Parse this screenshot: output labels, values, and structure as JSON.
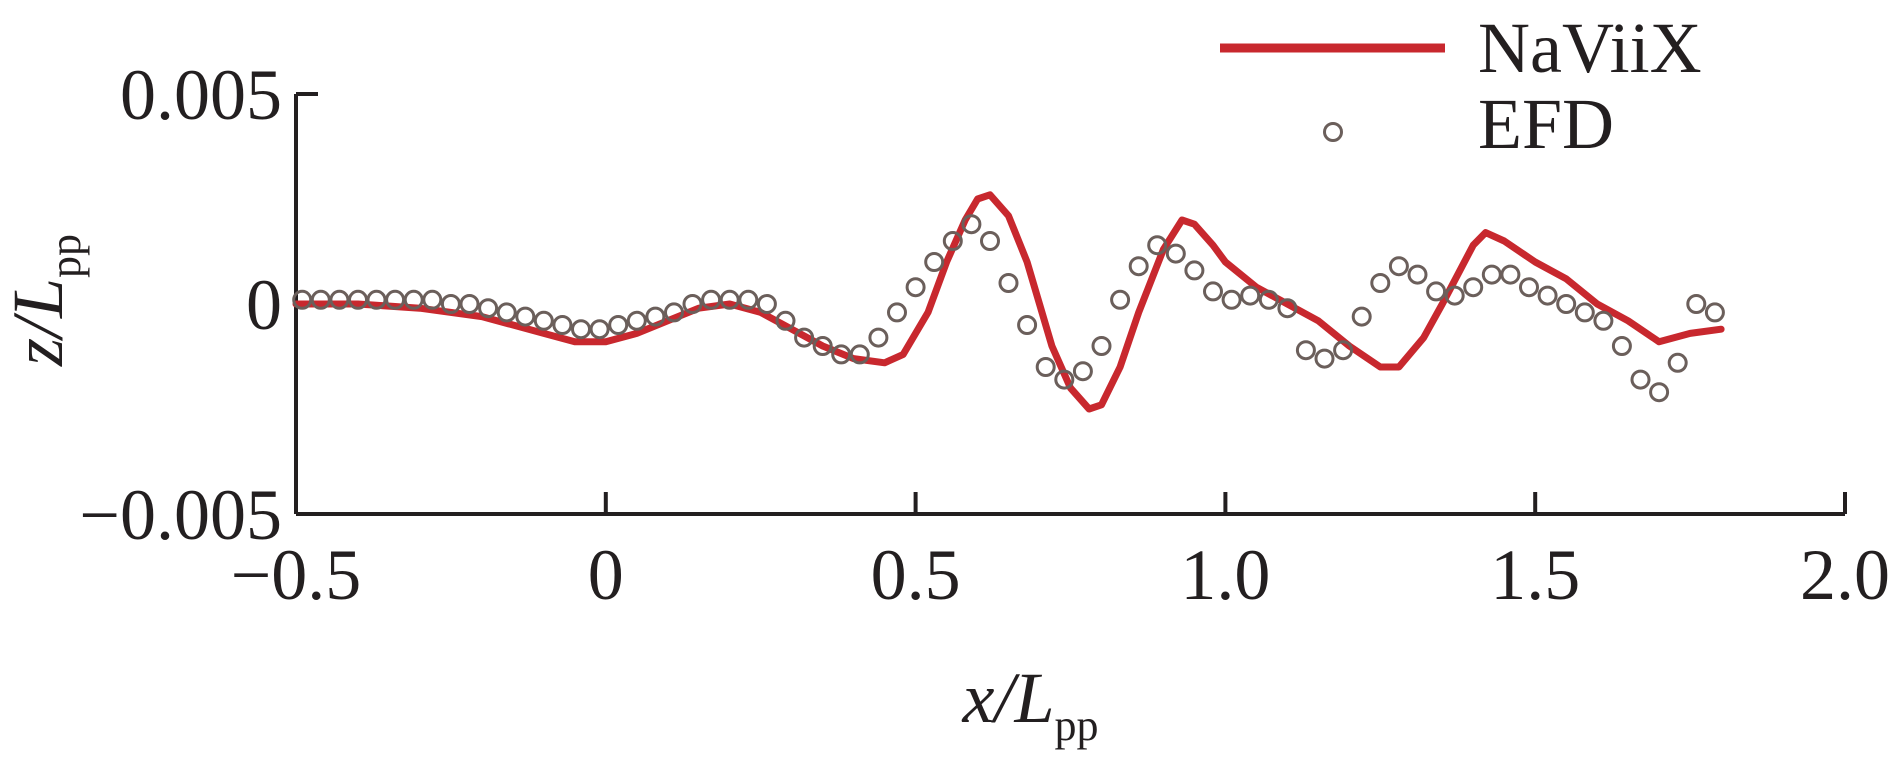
{
  "chart_data": {
    "type": "line",
    "title": "",
    "xlabel": {
      "main": "x/L",
      "sub": "pp"
    },
    "ylabel": {
      "main": "z/L",
      "sub": "pp"
    },
    "xlim": [
      -0.5,
      2.0
    ],
    "ylim": [
      -0.005,
      0.005
    ],
    "x_ticks": [
      -0.5,
      0,
      0.5,
      1.0,
      1.5,
      2.0
    ],
    "x_tick_labels": [
      "−0.5",
      "0",
      "0.5",
      "1.0",
      "1.5",
      "2.0"
    ],
    "y_ticks": [
      0.005,
      0,
      -0.005
    ],
    "y_tick_labels": [
      "0.005",
      "0",
      "−0.005"
    ],
    "grid": false,
    "legend_position": "top-right",
    "series": [
      {
        "name": "NaViiX",
        "style": "line",
        "color": "#c8282e",
        "x": [
          -0.5,
          -0.4,
          -0.3,
          -0.2,
          -0.1,
          -0.05,
          0.0,
          0.05,
          0.1,
          0.15,
          0.2,
          0.25,
          0.3,
          0.35,
          0.4,
          0.45,
          0.48,
          0.52,
          0.55,
          0.58,
          0.6,
          0.62,
          0.65,
          0.68,
          0.7,
          0.72,
          0.75,
          0.78,
          0.8,
          0.83,
          0.86,
          0.9,
          0.93,
          0.95,
          0.98,
          1.0,
          1.05,
          1.1,
          1.15,
          1.2,
          1.25,
          1.28,
          1.32,
          1.35,
          1.4,
          1.42,
          1.45,
          1.5,
          1.55,
          1.6,
          1.65,
          1.7,
          1.75,
          1.8
        ],
        "values": [
          0.0,
          0.0,
          -0.0001,
          -0.0003,
          -0.0007,
          -0.0009,
          -0.0009,
          -0.0007,
          -0.0004,
          -0.0001,
          0.0,
          -0.0002,
          -0.0006,
          -0.001,
          -0.0013,
          -0.0014,
          -0.0012,
          -0.0002,
          0.001,
          0.002,
          0.0025,
          0.0026,
          0.0021,
          0.001,
          0.0,
          -0.001,
          -0.002,
          -0.0025,
          -0.0024,
          -0.0015,
          -0.0002,
          0.0013,
          0.002,
          0.0019,
          0.0014,
          0.001,
          0.0004,
          0.0,
          -0.0004,
          -0.001,
          -0.0015,
          -0.0015,
          -0.0008,
          0.0,
          0.0014,
          0.0017,
          0.0015,
          0.001,
          0.0006,
          0.0,
          -0.0004,
          -0.0009,
          -0.0007,
          -0.0006
        ]
      },
      {
        "name": "EFD",
        "style": "markers",
        "marker": "open-circle",
        "color": "#6b5f5b",
        "x": [
          -0.49,
          -0.46,
          -0.43,
          -0.4,
          -0.37,
          -0.34,
          -0.31,
          -0.28,
          -0.25,
          -0.22,
          -0.19,
          -0.16,
          -0.13,
          -0.1,
          -0.07,
          -0.04,
          -0.01,
          0.02,
          0.05,
          0.08,
          0.11,
          0.14,
          0.17,
          0.2,
          0.23,
          0.26,
          0.29,
          0.32,
          0.35,
          0.38,
          0.41,
          0.44,
          0.47,
          0.5,
          0.53,
          0.56,
          0.59,
          0.62,
          0.65,
          0.68,
          0.71,
          0.74,
          0.77,
          0.8,
          0.83,
          0.86,
          0.89,
          0.92,
          0.95,
          0.98,
          1.01,
          1.04,
          1.07,
          1.1,
          1.13,
          1.16,
          1.19,
          1.22,
          1.25,
          1.28,
          1.31,
          1.34,
          1.37,
          1.4,
          1.43,
          1.46,
          1.49,
          1.52,
          1.55,
          1.58,
          1.61,
          1.64,
          1.67,
          1.7,
          1.73,
          1.76,
          1.79
        ],
        "values": [
          0.0001,
          0.0001,
          0.0001,
          0.0001,
          0.0001,
          0.0001,
          0.0001,
          0.0001,
          0.0,
          0.0,
          -0.0001,
          -0.0002,
          -0.0003,
          -0.0004,
          -0.0005,
          -0.0006,
          -0.0006,
          -0.0005,
          -0.0004,
          -0.0003,
          -0.0002,
          0.0,
          0.0001,
          0.0001,
          0.0001,
          0.0,
          -0.0004,
          -0.0008,
          -0.001,
          -0.0012,
          -0.0012,
          -0.0008,
          -0.0002,
          0.0004,
          0.001,
          0.0015,
          0.0019,
          0.0015,
          0.0005,
          -0.0005,
          -0.0015,
          -0.0018,
          -0.0016,
          -0.001,
          0.0001,
          0.0009,
          0.0014,
          0.0012,
          0.0008,
          0.0003,
          0.0001,
          0.0002,
          0.0001,
          -0.0001,
          -0.0011,
          -0.0013,
          -0.0011,
          -0.0003,
          0.0005,
          0.0009,
          0.0007,
          0.0003,
          0.0002,
          0.0004,
          0.0007,
          0.0007,
          0.0004,
          0.0002,
          0.0,
          -0.0002,
          -0.0004,
          -0.001,
          -0.0018,
          -0.0021,
          -0.0014,
          0.0,
          -0.0002
        ]
      }
    ]
  }
}
